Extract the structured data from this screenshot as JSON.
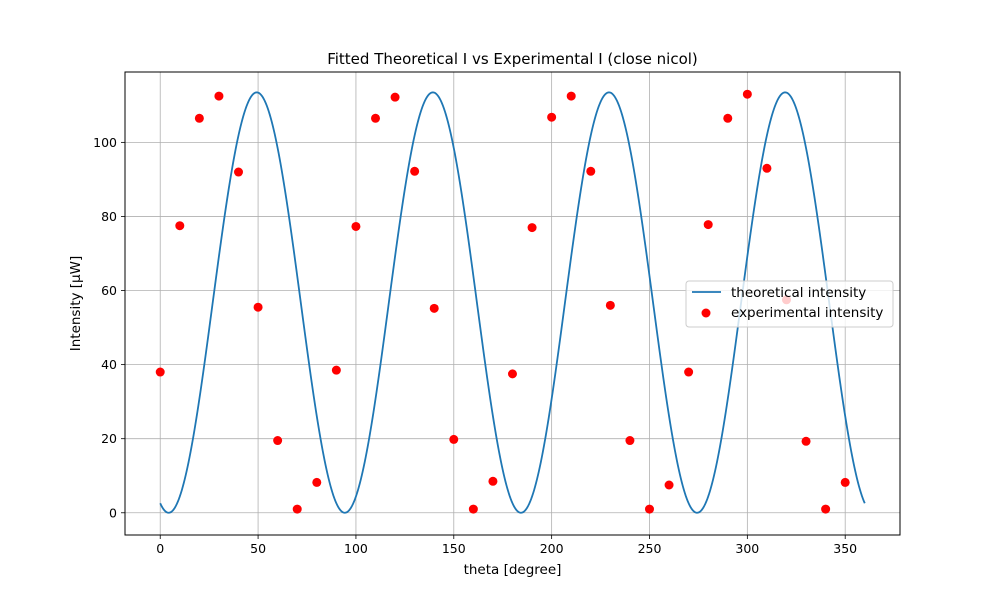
{
  "chart_data": {
    "type": "scatter",
    "title": "Fitted Theoretical I vs Experimental I (close nicol)",
    "xlabel": "theta [degree]",
    "ylabel": "Intensity [μW]",
    "xlim": [
      -18,
      378
    ],
    "ylim": [
      -6,
      119
    ],
    "xticks": [
      0,
      50,
      100,
      150,
      200,
      250,
      300,
      350
    ],
    "yticks": [
      0,
      20,
      40,
      60,
      80,
      100
    ],
    "grid": true,
    "legend_position": "center-right",
    "series": [
      {
        "name": "theoretical intensity",
        "type": "line",
        "color": "#1f77b4",
        "x_range": [
          0,
          360
        ],
        "model": {
          "offset": 56.75,
          "amplitude": 56.75,
          "period_deg": 90,
          "phase_deg": 4.32
        }
      },
      {
        "name": "experimental intensity",
        "type": "scatter",
        "color": "#ff0000",
        "x": [
          0,
          10,
          20,
          30,
          40,
          50,
          60,
          70,
          80,
          90,
          100,
          110,
          120,
          130,
          140,
          150,
          160,
          170,
          180,
          190,
          200,
          210,
          220,
          230,
          240,
          250,
          260,
          270,
          280,
          290,
          300,
          310,
          320,
          330,
          340,
          350
        ],
        "y": [
          38,
          77.5,
          106.5,
          112.5,
          92,
          55.5,
          19.5,
          1,
          8.2,
          38.5,
          77.3,
          106.5,
          112.2,
          92.2,
          55.2,
          19.8,
          1,
          8.5,
          37.5,
          77,
          106.8,
          112.5,
          92.2,
          56,
          19.5,
          1,
          7.5,
          38,
          77.8,
          106.5,
          113,
          93,
          57.5,
          19.3,
          1,
          8.2
        ]
      }
    ]
  }
}
